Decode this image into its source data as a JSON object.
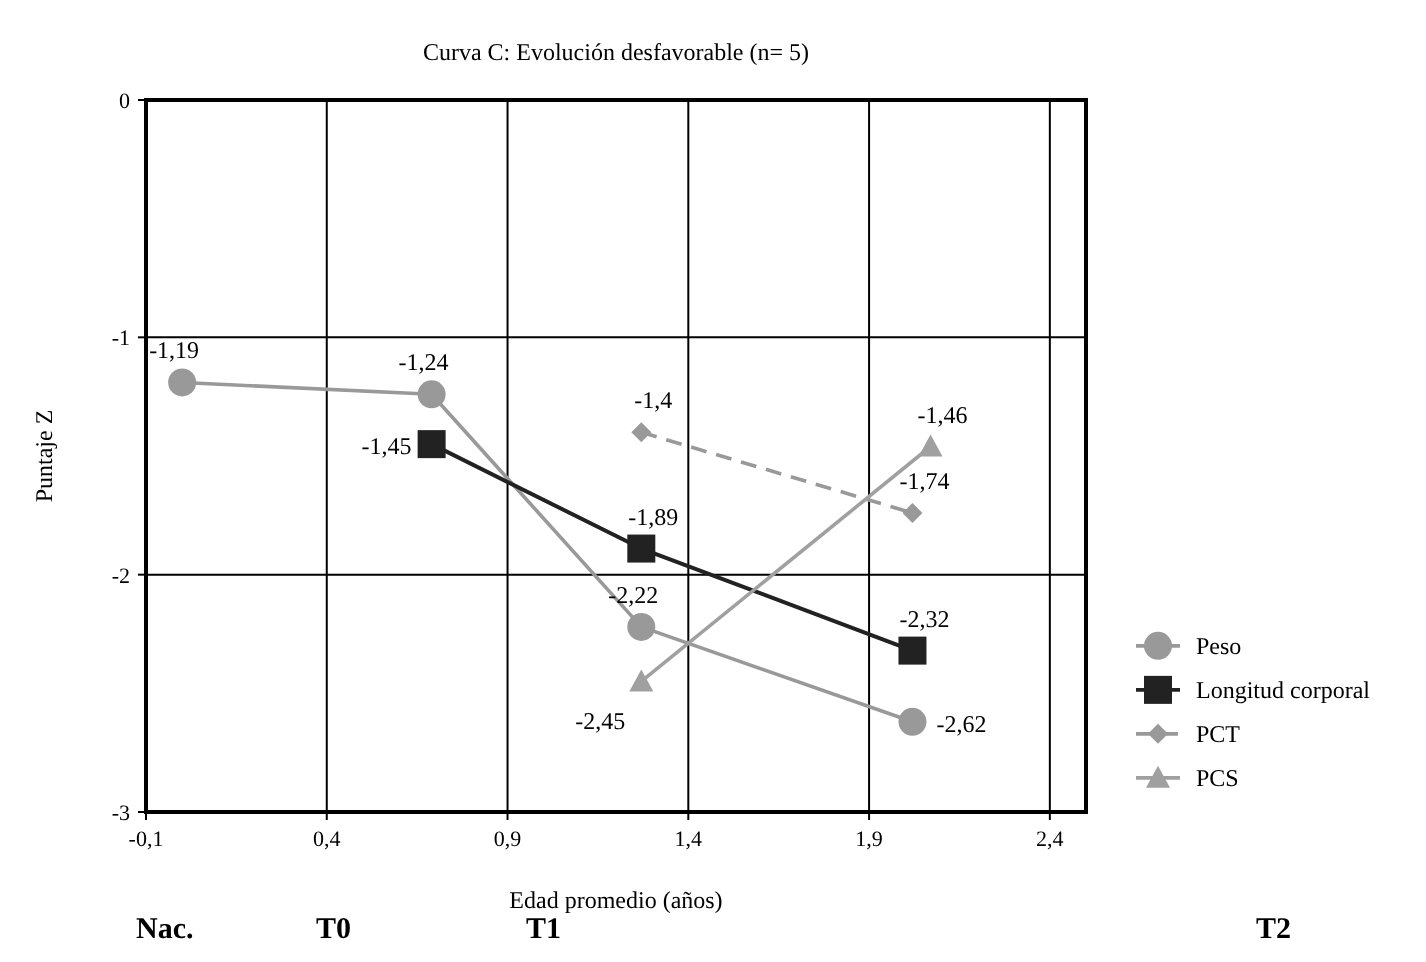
{
  "chart_data": {
    "type": "line",
    "title": "Curva C:  Evolución desfavorable (n= 5)",
    "xlabel": "Edad promedio (años)",
    "ylabel": "Puntaje Z",
    "xlim": [
      -0.1,
      2.5
    ],
    "xticks": [
      {
        "value": -0.1,
        "label": "-0,1"
      },
      {
        "value": 0.4,
        "label": "0,4"
      },
      {
        "value": 0.9,
        "label": "0,9"
      },
      {
        "value": 1.4,
        "label": "1,4"
      },
      {
        "value": 1.9,
        "label": "1,9"
      },
      {
        "value": 2.4,
        "label": "2,4"
      }
    ],
    "ylim": [
      -3,
      0
    ],
    "yticks": [
      -3,
      -2,
      -1,
      0
    ],
    "grid": true,
    "legend": "right",
    "data_labels": true,
    "annotations": [
      "Nac.",
      "T0",
      "T1",
      "T2"
    ],
    "series": [
      {
        "name": "Peso",
        "color": "#999999",
        "marker": "circle",
        "line_style": "solid",
        "x": [
          0,
          0.69,
          1.27,
          2.02
        ],
        "values": [
          -1.19,
          -1.24,
          -2.22,
          -2.62
        ],
        "value_labels": [
          "-1,19",
          "-1,24",
          "-2,22",
          "-2,62"
        ]
      },
      {
        "name": "Longitud corporal",
        "color": "#222222",
        "marker": "square",
        "line_style": "solid",
        "x": [
          0.69,
          1.27,
          2.02
        ],
        "values": [
          -1.45,
          -1.89,
          -2.32
        ],
        "value_labels": [
          "-1,45",
          "-1,89",
          "-2,32"
        ]
      },
      {
        "name": "PCT",
        "color": "#999999",
        "marker": "diamond",
        "line_style": "dashed",
        "x": [
          1.27,
          2.02
        ],
        "values": [
          -1.4,
          -1.74
        ],
        "value_labels": [
          "-1,4",
          "-1,74"
        ]
      },
      {
        "name": "PCS",
        "color": "#a0a0a0",
        "marker": "triangle",
        "line_style": "solid",
        "x": [
          1.27,
          2.07
        ],
        "values": [
          -2.45,
          -1.46
        ],
        "value_labels": [
          "-2,45",
          "-1,46"
        ]
      }
    ]
  }
}
